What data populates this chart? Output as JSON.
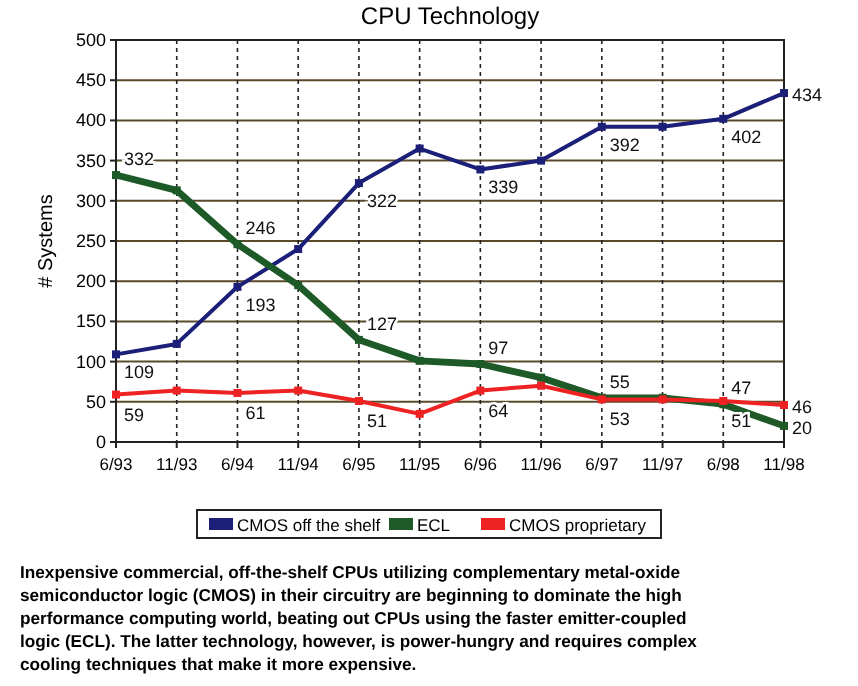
{
  "chart_data": {
    "type": "line",
    "title": "CPU Technology",
    "ylabel": "# Systems",
    "categories": [
      "6/93",
      "11/93",
      "6/94",
      "11/94",
      "6/95",
      "11/95",
      "6/96",
      "11/96",
      "6/97",
      "11/97",
      "6/98",
      "11/98"
    ],
    "series": [
      {
        "name": "CMOS off the shelf",
        "color": "#1c1f78",
        "values": [
          109,
          122,
          193,
          240,
          322,
          365,
          339,
          350,
          392,
          392,
          402,
          434
        ],
        "value_labels": [
          "109",
          null,
          "193",
          null,
          "322",
          null,
          "339",
          null,
          "392",
          null,
          "402",
          "434"
        ]
      },
      {
        "name": "ECL",
        "color": "#1e5a28",
        "values": [
          332,
          313,
          246,
          195,
          127,
          101,
          97,
          80,
          55,
          55,
          47,
          20
        ],
        "value_labels": [
          "332",
          null,
          "246",
          null,
          "127",
          null,
          "97",
          null,
          "55",
          null,
          "47",
          "20"
        ]
      },
      {
        "name": "CMOS proprietary",
        "color": "#ee2222",
        "values": [
          59,
          64,
          61,
          64,
          51,
          35,
          64,
          70,
          53,
          53,
          51,
          46
        ],
        "value_labels": [
          "59",
          null,
          "61",
          null,
          "51",
          null,
          "64",
          null,
          "53",
          null,
          "51",
          "46"
        ]
      }
    ],
    "ylim": [
      0,
      500
    ],
    "yticks": [
      0,
      50,
      100,
      150,
      200,
      250,
      300,
      350,
      400,
      450,
      500
    ],
    "grid": true,
    "marker": "square",
    "line_style": "solid",
    "legend": "bottom",
    "annotations": [
      "Inexpensive commercial, off-the-shelf CPUs utilizing complementary metal-oxide semiconductor logic (CMOS) in their circuitry are beginning to dominate the high performance computing world, beating out CPUs using the faster emitter-coupled logic (ECL).  The latter technology, however, is power-hungry and requires complex cooling techniques that make it more expensive."
    ]
  }
}
